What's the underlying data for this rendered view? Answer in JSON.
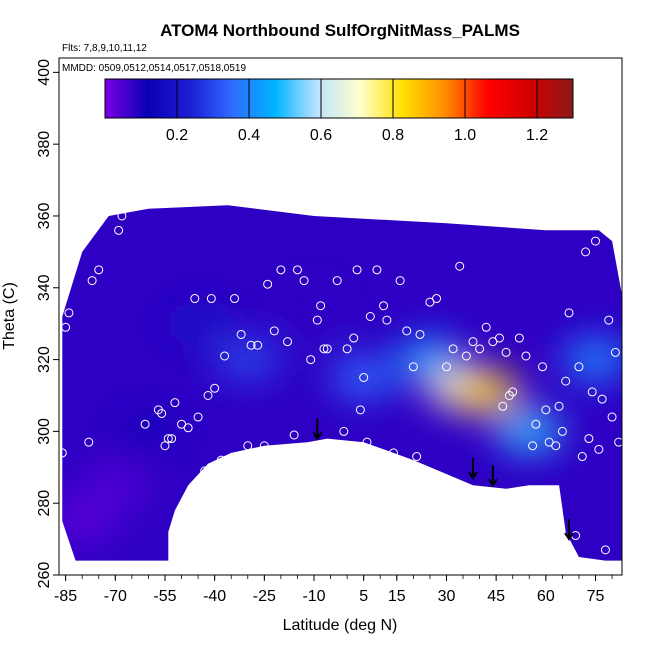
{
  "chart_data": {
    "type": "heatmap",
    "title": "ATOM4 Northbound SulfOrgNitMass_PALMS",
    "annotations": [
      "Flts: 7,8,9,10,11,12",
      "MMDD: 0509,0512,0514,0517,0518,0519"
    ],
    "xlabel": "Latitude (deg N)",
    "ylabel": "Theta (C)",
    "xlim": [
      -87,
      83
    ],
    "ylim": [
      260,
      404
    ],
    "x_ticks": [
      -85,
      -70,
      -55,
      -40,
      -25,
      -10,
      5,
      15,
      30,
      45,
      60,
      75
    ],
    "x_tick_labels": [
      "-85",
      "-70",
      "-55",
      "-40",
      "-25",
      "-10",
      "5",
      "15",
      "30",
      "45",
      "60",
      "75"
    ],
    "y_ticks": [
      260,
      280,
      300,
      320,
      340,
      360,
      380,
      400
    ],
    "y_tick_labels": [
      "260",
      "280",
      "300",
      "320",
      "340",
      "360",
      "380",
      "400"
    ],
    "colorbar": {
      "range": [
        0,
        1.3
      ],
      "ticks": [
        0.2,
        0.4,
        0.6,
        0.8,
        1.0,
        1.2
      ],
      "tick_labels": [
        "0.2",
        "0.4",
        "0.6",
        "0.8",
        "1.0",
        "1.2"
      ],
      "colors": [
        "#7a00e6",
        "#0a00b4",
        "#1d1dd6",
        "#2f6cff",
        "#00b4ff",
        "#bfe4ff",
        "#ffffcc",
        "#ffe000",
        "#ff8c00",
        "#ff0000",
        "#d00000",
        "#8b1a1a"
      ]
    },
    "field_values": [
      {
        "lat": -80,
        "theta": 275,
        "value": 0.03
      },
      {
        "lat": -70,
        "theta": 285,
        "value": 0.04
      },
      {
        "lat": -60,
        "theta": 300,
        "value": 0.1
      },
      {
        "lat": -45,
        "theta": 330,
        "value": 0.18
      },
      {
        "lat": -30,
        "theta": 320,
        "value": 0.3
      },
      {
        "lat": -10,
        "theta": 335,
        "value": 0.08
      },
      {
        "lat": 5,
        "theta": 315,
        "value": 0.35
      },
      {
        "lat": 25,
        "theta": 320,
        "value": 0.45
      },
      {
        "lat": 35,
        "theta": 312,
        "value": 0.7
      },
      {
        "lat": 42,
        "theta": 311,
        "value": 0.85
      },
      {
        "lat": 55,
        "theta": 300,
        "value": 0.5
      },
      {
        "lat": 75,
        "theta": 320,
        "value": 0.4
      }
    ],
    "sample_points": [
      {
        "lat": -86,
        "theta": 294
      },
      {
        "lat": -85,
        "theta": 329
      },
      {
        "lat": -84,
        "theta": 333
      },
      {
        "lat": -78,
        "theta": 297
      },
      {
        "lat": -77,
        "theta": 342
      },
      {
        "lat": -75,
        "theta": 345
      },
      {
        "lat": -69,
        "theta": 356
      },
      {
        "lat": -68,
        "theta": 360
      },
      {
        "lat": -61,
        "theta": 302
      },
      {
        "lat": -57,
        "theta": 306
      },
      {
        "lat": -56,
        "theta": 305
      },
      {
        "lat": -55,
        "theta": 296
      },
      {
        "lat": -54,
        "theta": 298
      },
      {
        "lat": -53,
        "theta": 298
      },
      {
        "lat": -52,
        "theta": 308
      },
      {
        "lat": -50,
        "theta": 302
      },
      {
        "lat": -48,
        "theta": 301
      },
      {
        "lat": -46,
        "theta": 337
      },
      {
        "lat": -45,
        "theta": 304
      },
      {
        "lat": -43,
        "theta": 289
      },
      {
        "lat": -42,
        "theta": 310
      },
      {
        "lat": -41,
        "theta": 337
      },
      {
        "lat": -40,
        "theta": 312
      },
      {
        "lat": -38,
        "theta": 292
      },
      {
        "lat": -37,
        "theta": 321
      },
      {
        "lat": -34,
        "theta": 337
      },
      {
        "lat": -32,
        "theta": 327
      },
      {
        "lat": -30,
        "theta": 296
      },
      {
        "lat": -29,
        "theta": 324
      },
      {
        "lat": -27,
        "theta": 324
      },
      {
        "lat": -25,
        "theta": 296
      },
      {
        "lat": -24,
        "theta": 341
      },
      {
        "lat": -22,
        "theta": 328
      },
      {
        "lat": -20,
        "theta": 345
      },
      {
        "lat": -18,
        "theta": 325
      },
      {
        "lat": -16,
        "theta": 299
      },
      {
        "lat": -15,
        "theta": 345
      },
      {
        "lat": -13,
        "theta": 342
      },
      {
        "lat": -11,
        "theta": 320
      },
      {
        "lat": -9,
        "theta": 331
      },
      {
        "lat": -8,
        "theta": 335
      },
      {
        "lat": -7,
        "theta": 323
      },
      {
        "lat": -6,
        "theta": 323
      },
      {
        "lat": -3,
        "theta": 342
      },
      {
        "lat": -1,
        "theta": 300
      },
      {
        "lat": 0,
        "theta": 323
      },
      {
        "lat": 2,
        "theta": 326
      },
      {
        "lat": 3,
        "theta": 345
      },
      {
        "lat": 4,
        "theta": 306
      },
      {
        "lat": 5,
        "theta": 315
      },
      {
        "lat": 6,
        "theta": 297
      },
      {
        "lat": 7,
        "theta": 332
      },
      {
        "lat": 9,
        "theta": 345
      },
      {
        "lat": 11,
        "theta": 335
      },
      {
        "lat": 12,
        "theta": 331
      },
      {
        "lat": 14,
        "theta": 294
      },
      {
        "lat": 16,
        "theta": 342
      },
      {
        "lat": 18,
        "theta": 328
      },
      {
        "lat": 20,
        "theta": 318
      },
      {
        "lat": 21,
        "theta": 293
      },
      {
        "lat": 22,
        "theta": 327
      },
      {
        "lat": 25,
        "theta": 336
      },
      {
        "lat": 27,
        "theta": 337
      },
      {
        "lat": 30,
        "theta": 318
      },
      {
        "lat": 32,
        "theta": 323
      },
      {
        "lat": 34,
        "theta": 346
      },
      {
        "lat": 36,
        "theta": 321
      },
      {
        "lat": 38,
        "theta": 325
      },
      {
        "lat": 40,
        "theta": 323
      },
      {
        "lat": 42,
        "theta": 329
      },
      {
        "lat": 44,
        "theta": 325
      },
      {
        "lat": 46,
        "theta": 326
      },
      {
        "lat": 47,
        "theta": 307
      },
      {
        "lat": 48,
        "theta": 322
      },
      {
        "lat": 49,
        "theta": 310
      },
      {
        "lat": 50,
        "theta": 311
      },
      {
        "lat": 52,
        "theta": 326
      },
      {
        "lat": 54,
        "theta": 321
      },
      {
        "lat": 56,
        "theta": 296
      },
      {
        "lat": 57,
        "theta": 302
      },
      {
        "lat": 59,
        "theta": 318
      },
      {
        "lat": 60,
        "theta": 306
      },
      {
        "lat": 61,
        "theta": 297
      },
      {
        "lat": 62,
        "theta": 270
      },
      {
        "lat": 63,
        "theta": 296
      },
      {
        "lat": 64,
        "theta": 307
      },
      {
        "lat": 65,
        "theta": 300
      },
      {
        "lat": 66,
        "theta": 314
      },
      {
        "lat": 67,
        "theta": 333
      },
      {
        "lat": 69,
        "theta": 271
      },
      {
        "lat": 70,
        "theta": 318
      },
      {
        "lat": 71,
        "theta": 293
      },
      {
        "lat": 72,
        "theta": 350
      },
      {
        "lat": 73,
        "theta": 298
      },
      {
        "lat": 74,
        "theta": 311
      },
      {
        "lat": 75,
        "theta": 353
      },
      {
        "lat": 76,
        "theta": 295
      },
      {
        "lat": 77,
        "theta": 309
      },
      {
        "lat": 78,
        "theta": 267
      },
      {
        "lat": 79,
        "theta": 331
      },
      {
        "lat": 80,
        "theta": 304
      },
      {
        "lat": 81,
        "theta": 322
      },
      {
        "lat": 82,
        "theta": 297
      }
    ],
    "tropopause_arrows": [
      {
        "lat": -9,
        "theta": 298
      },
      {
        "lat": 38,
        "theta": 287
      },
      {
        "lat": 44,
        "theta": 285
      },
      {
        "lat": 67,
        "theta": 270
      }
    ],
    "data_region": {
      "top": [
        [
          -86,
          332
        ],
        [
          -80,
          350
        ],
        [
          -72,
          360
        ],
        [
          -66,
          361
        ],
        [
          -60,
          362
        ],
        [
          -36,
          363
        ],
        [
          -10,
          360
        ],
        [
          30,
          358
        ],
        [
          60,
          356
        ],
        [
          76,
          356
        ],
        [
          80,
          353
        ],
        [
          83,
          338
        ]
      ],
      "bottom": [
        [
          83,
          264
        ],
        [
          78,
          264
        ],
        [
          70,
          265
        ],
        [
          66,
          272
        ],
        [
          64,
          285
        ],
        [
          55,
          285
        ],
        [
          48,
          284
        ],
        [
          38,
          285
        ],
        [
          20,
          292
        ],
        [
          5,
          297
        ],
        [
          -6,
          298
        ],
        [
          -12,
          297
        ],
        [
          -25,
          296
        ],
        [
          -35,
          294
        ],
        [
          -42,
          291
        ],
        [
          -48,
          285
        ],
        [
          -52,
          278
        ],
        [
          -54,
          272
        ],
        [
          -54,
          264
        ],
        [
          -82,
          264
        ],
        [
          -86,
          275
        ]
      ]
    }
  }
}
